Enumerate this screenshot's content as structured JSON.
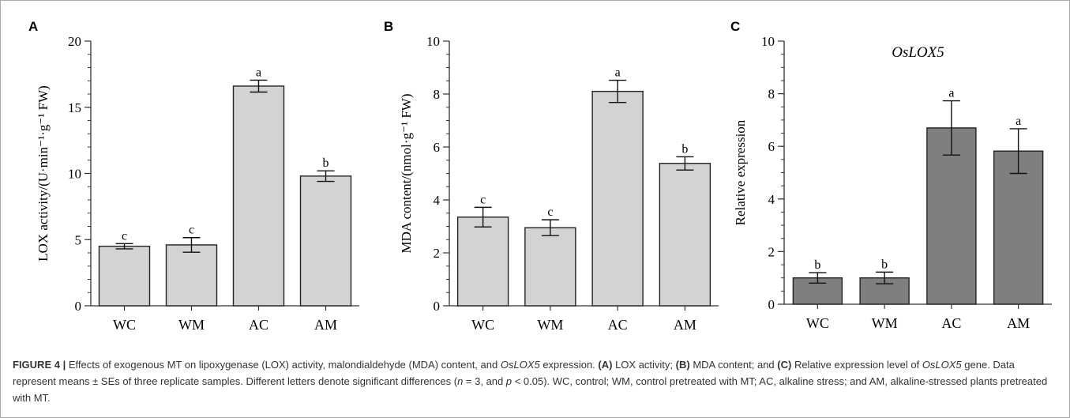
{
  "chart_data": [
    {
      "type": "bar",
      "panel_label": "A",
      "categories": [
        "WC",
        "WM",
        "AC",
        "AM"
      ],
      "values": [
        4.5,
        4.6,
        16.6,
        9.8
      ],
      "errors": [
        0.2,
        0.55,
        0.45,
        0.4
      ],
      "letters": [
        "c",
        "c",
        "a",
        "b"
      ],
      "ylabel": "LOX activity/(U·min⁻¹·g⁻¹ FW)",
      "ylim": [
        0,
        20
      ],
      "yticks": [
        "0",
        "5",
        "10",
        "15",
        "20"
      ],
      "bar_color": "#d3d3d3",
      "title": ""
    },
    {
      "type": "bar",
      "panel_label": "B",
      "categories": [
        "WC",
        "WM",
        "AC",
        "AM"
      ],
      "values": [
        3.35,
        2.95,
        8.1,
        5.38
      ],
      "errors": [
        0.37,
        0.3,
        0.42,
        0.25
      ],
      "letters": [
        "c",
        "c",
        "a",
        "b"
      ],
      "ylabel": "MDA content/(nmol·g⁻¹ FW)",
      "ylim": [
        0,
        10
      ],
      "yticks": [
        "0",
        "2",
        "4",
        "6",
        "8",
        "10"
      ],
      "bar_color": "#d3d3d3",
      "title": ""
    },
    {
      "type": "bar",
      "panel_label": "C",
      "categories": [
        "WC",
        "WM",
        "AC",
        "AM"
      ],
      "values": [
        1.0,
        1.0,
        6.7,
        5.82
      ],
      "errors": [
        0.2,
        0.22,
        1.03,
        0.85
      ],
      "letters": [
        "b",
        "b",
        "a",
        "a"
      ],
      "ylabel": "Relative expression",
      "ylim": [
        0,
        10
      ],
      "yticks": [
        "0",
        "2",
        "4",
        "6",
        "8",
        "10"
      ],
      "bar_color": "#7f7f7f",
      "title": "OsLOX5"
    }
  ],
  "caption": {
    "figure_label": "FIGURE 4 | ",
    "t1": "Effects of exogenous MT on lipoxygenase (LOX) activity, malondialdehyde (MDA) content, and ",
    "gene1": "OsLOX5",
    "t2": " expression. ",
    "a_label": "(A)",
    "a_text": " LOX activity; ",
    "b_label": "(B)",
    "b_text": " MDA content; and ",
    "c_label": "(C)",
    "c_text": " Relative expression level of ",
    "gene2": "OsLOX5",
    "t3": " gene. Data represent means ± SEs of three replicate samples. Different letters denote significant differences (",
    "n_sym": "n",
    "n_eq": " = 3, and ",
    "p_sym": "p",
    "t4": " < 0.05). WC, control; WM, control pretreated with MT; AC, alkaline stress; and AM, alkaline-stressed plants pretreated with MT."
  }
}
